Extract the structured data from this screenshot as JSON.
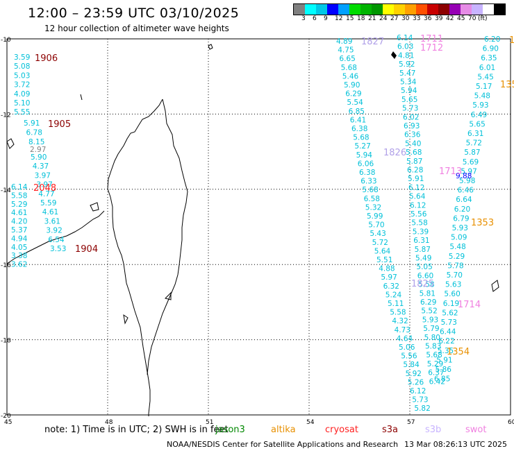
{
  "header": {
    "title": "12:00 – 23:59 UTC 03/10/2025",
    "subtitle": "12 hour collection of altimeter wave heights"
  },
  "color_scale": {
    "colors": [
      "#808080",
      "#00ffff",
      "#00c8e6",
      "#0000ff",
      "#00a0ff",
      "#00dc00",
      "#00b400",
      "#009600",
      "#ffff00",
      "#ffd200",
      "#ffa000",
      "#ff5000",
      "#c80000",
      "#8c0000",
      "#9600b4",
      "#e68ce6",
      "#c8b4ff",
      "#ffffff",
      "#000000"
    ],
    "labels": [
      "3",
      "6",
      "9",
      "12",
      "15",
      "18",
      "21",
      "24",
      "27",
      "30",
      "33",
      "36",
      "39",
      "42",
      "45",
      "70",
      "(ft)"
    ]
  },
  "map": {
    "lon_ticks": [
      "45",
      "48",
      "51",
      "54",
      "57",
      "60"
    ],
    "lat_ticks": [
      "-10",
      "-12",
      "-14",
      "-16",
      "-18",
      "-20"
    ],
    "tracks": [
      {
        "color": "#00c0d8",
        "values": [
          "3.59",
          "5.08",
          "5.03",
          "3.72",
          "4.09",
          "5.10",
          "5.55"
        ]
      },
      {
        "color": "#00c0d8",
        "values": [
          "5.91",
          "6.78",
          "8.15"
        ]
      },
      {
        "color": "#808080",
        "values": [
          "2.97"
        ]
      },
      {
        "color": "#00c0d8",
        "values": [
          "5.90",
          "4.37",
          "3.97",
          "3.97",
          "4.77",
          "5.59",
          "4.61",
          "3.61",
          "3.92",
          "6.54",
          "3.53"
        ]
      },
      {
        "color": "#00c0d8",
        "values": [
          "6.14",
          "5.58",
          "5.29",
          "4.61",
          "4.20",
          "5.37",
          "4.94",
          "4.05",
          "3.38",
          "3.62"
        ]
      },
      {
        "color": "#00c0d8",
        "values": [
          "4.89",
          "4.75",
          "6.65",
          "5.68",
          "5.46",
          "5.90",
          "6.29",
          "5.54",
          "6.85",
          "6.41",
          "6.38",
          "5.68",
          "5.27",
          "5.94",
          "6.06",
          "6.38",
          "6.33",
          "5.68",
          "6.58",
          "5.32",
          "5.99",
          "5.70",
          "5.43",
          "5.72",
          "5.64",
          "5.51",
          "4.88",
          "5.97",
          "6.32",
          "5.24",
          "5.11",
          "5.58",
          "4.32",
          "4.73",
          "4.64",
          "5.06",
          "5.56",
          "5.84",
          "5.92",
          "5.26",
          "6.12",
          "5.73",
          "5.82"
        ]
      },
      {
        "color": "#00c0d8",
        "values": [
          "6.14",
          "6.03",
          "4.81",
          "5.92",
          "5.47",
          "5.34",
          "5.94",
          "5.65",
          "5.73",
          "6.02",
          "6.93",
          "6.36",
          "5.40",
          "5.68",
          "5.87",
          "6.28",
          "5.91",
          "6.12",
          "5.64",
          "6.12",
          "5.56",
          "5.58",
          "5.39",
          "6.31",
          "5.87",
          "5.49",
          "5.05",
          "6.60",
          "5.58",
          "5.81",
          "6.29",
          "5.52",
          "5.93",
          "5.79",
          "5.80",
          "5.83",
          "5.68",
          "5.29",
          "6.37",
          "6.42"
        ]
      },
      {
        "color": "#00c0d8",
        "values": [
          "6.20",
          "6.90",
          "6.35",
          "6.01",
          "5.45",
          "5.17",
          "5.48",
          "5.93",
          "6.49",
          "5.65",
          "6.31",
          "5.72",
          "5.87",
          "5.69",
          "5.97",
          "5.98",
          "6.46",
          "6.64",
          "6.20",
          "6.79",
          "5.93",
          "5.09",
          "5.48",
          "5.29",
          "5.78",
          "5.70",
          "5.63",
          "5.60",
          "6.19",
          "5.62",
          "5.73",
          "6.44",
          "6.22",
          "5.35",
          "5.91",
          "5.86",
          "6.85"
        ]
      },
      {
        "color": "#0000ff",
        "values": [
          "9.88"
        ]
      }
    ],
    "time_labels": [
      {
        "text": "1906",
        "color": "#8c0000"
      },
      {
        "text": "1905",
        "color": "#8c0000"
      },
      {
        "text": "2048",
        "color": "#ff2020"
      },
      {
        "text": "1904",
        "color": "#8c0000"
      },
      {
        "text": "1827",
        "color": "#b0a0e8"
      },
      {
        "text": "1711",
        "color": "#f080e0"
      },
      {
        "text": "1712",
        "color": "#f080e0"
      },
      {
        "text": "1826",
        "color": "#b0a0e8"
      },
      {
        "text": "1713",
        "color": "#f080e0"
      },
      {
        "text": "1353",
        "color": "#e89000"
      },
      {
        "text": "1825",
        "color": "#b0a0e8"
      },
      {
        "text": "1714",
        "color": "#f080e0"
      },
      {
        "text": "1354",
        "color": "#e89000"
      },
      {
        "text": "135",
        "color": "#e89000"
      },
      {
        "text": "1",
        "color": "#e89000"
      }
    ]
  },
  "footer": {
    "note": "note: 1) Time is in UTC; 2) SWH is in feet",
    "satellites": [
      {
        "name": "jason3",
        "color": "#008800"
      },
      {
        "name": "altika",
        "color": "#e89000"
      },
      {
        "name": "cryosat",
        "color": "#ff2020"
      },
      {
        "name": "s3a",
        "color": "#8c0000"
      },
      {
        "name": "s3b",
        "color": "#c8b4ff"
      },
      {
        "name": "swot",
        "color": "#f080e0"
      }
    ],
    "credit": "NOAA/NESDIS Center for Satellite Applications and Research",
    "timestamp": "13 Mar 08:26:13 UTC 2025"
  }
}
